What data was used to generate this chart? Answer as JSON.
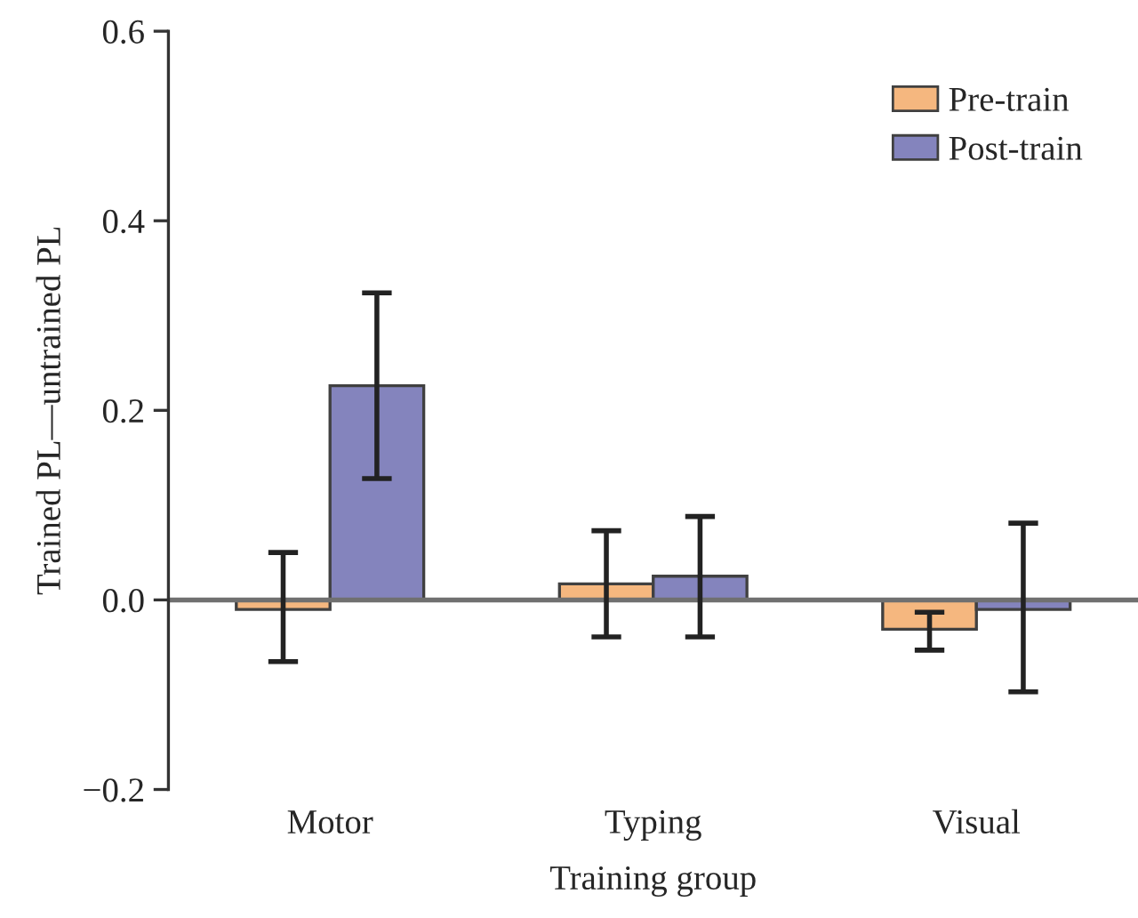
{
  "chart_data": {
    "type": "bar",
    "xlabel": "Training group",
    "ylabel": "Trained PL—untrained PL",
    "categories": [
      "Motor",
      "Typing",
      "Visual"
    ],
    "series": [
      {
        "name": "Pre-train",
        "color": "#f5b77f",
        "values": [
          -0.01,
          0.017,
          -0.031
        ],
        "errors": [
          [
            -0.065,
            0.05
          ],
          [
            -0.039,
            0.073
          ],
          [
            -0.053,
            -0.013
          ]
        ]
      },
      {
        "name": "Post-train",
        "color": "#8484bd",
        "values": [
          0.226,
          0.025,
          -0.01
        ],
        "errors": [
          [
            0.128,
            0.324
          ],
          [
            -0.039,
            0.088
          ],
          [
            -0.097,
            0.081
          ]
        ]
      }
    ],
    "ylim": [
      -0.2,
      0.6
    ],
    "yticks": [
      {
        "value": -0.2,
        "label": "−0.2"
      },
      {
        "value": 0.0,
        "label": "0.0"
      },
      {
        "value": 0.2,
        "label": "0.2"
      },
      {
        "value": 0.4,
        "label": "0.4"
      },
      {
        "value": 0.6,
        "label": "0.6"
      }
    ],
    "ref_lines": [
      {
        "axis": "y",
        "value": 0,
        "color": "#707070"
      }
    ],
    "legend": "top right",
    "grid": false
  }
}
